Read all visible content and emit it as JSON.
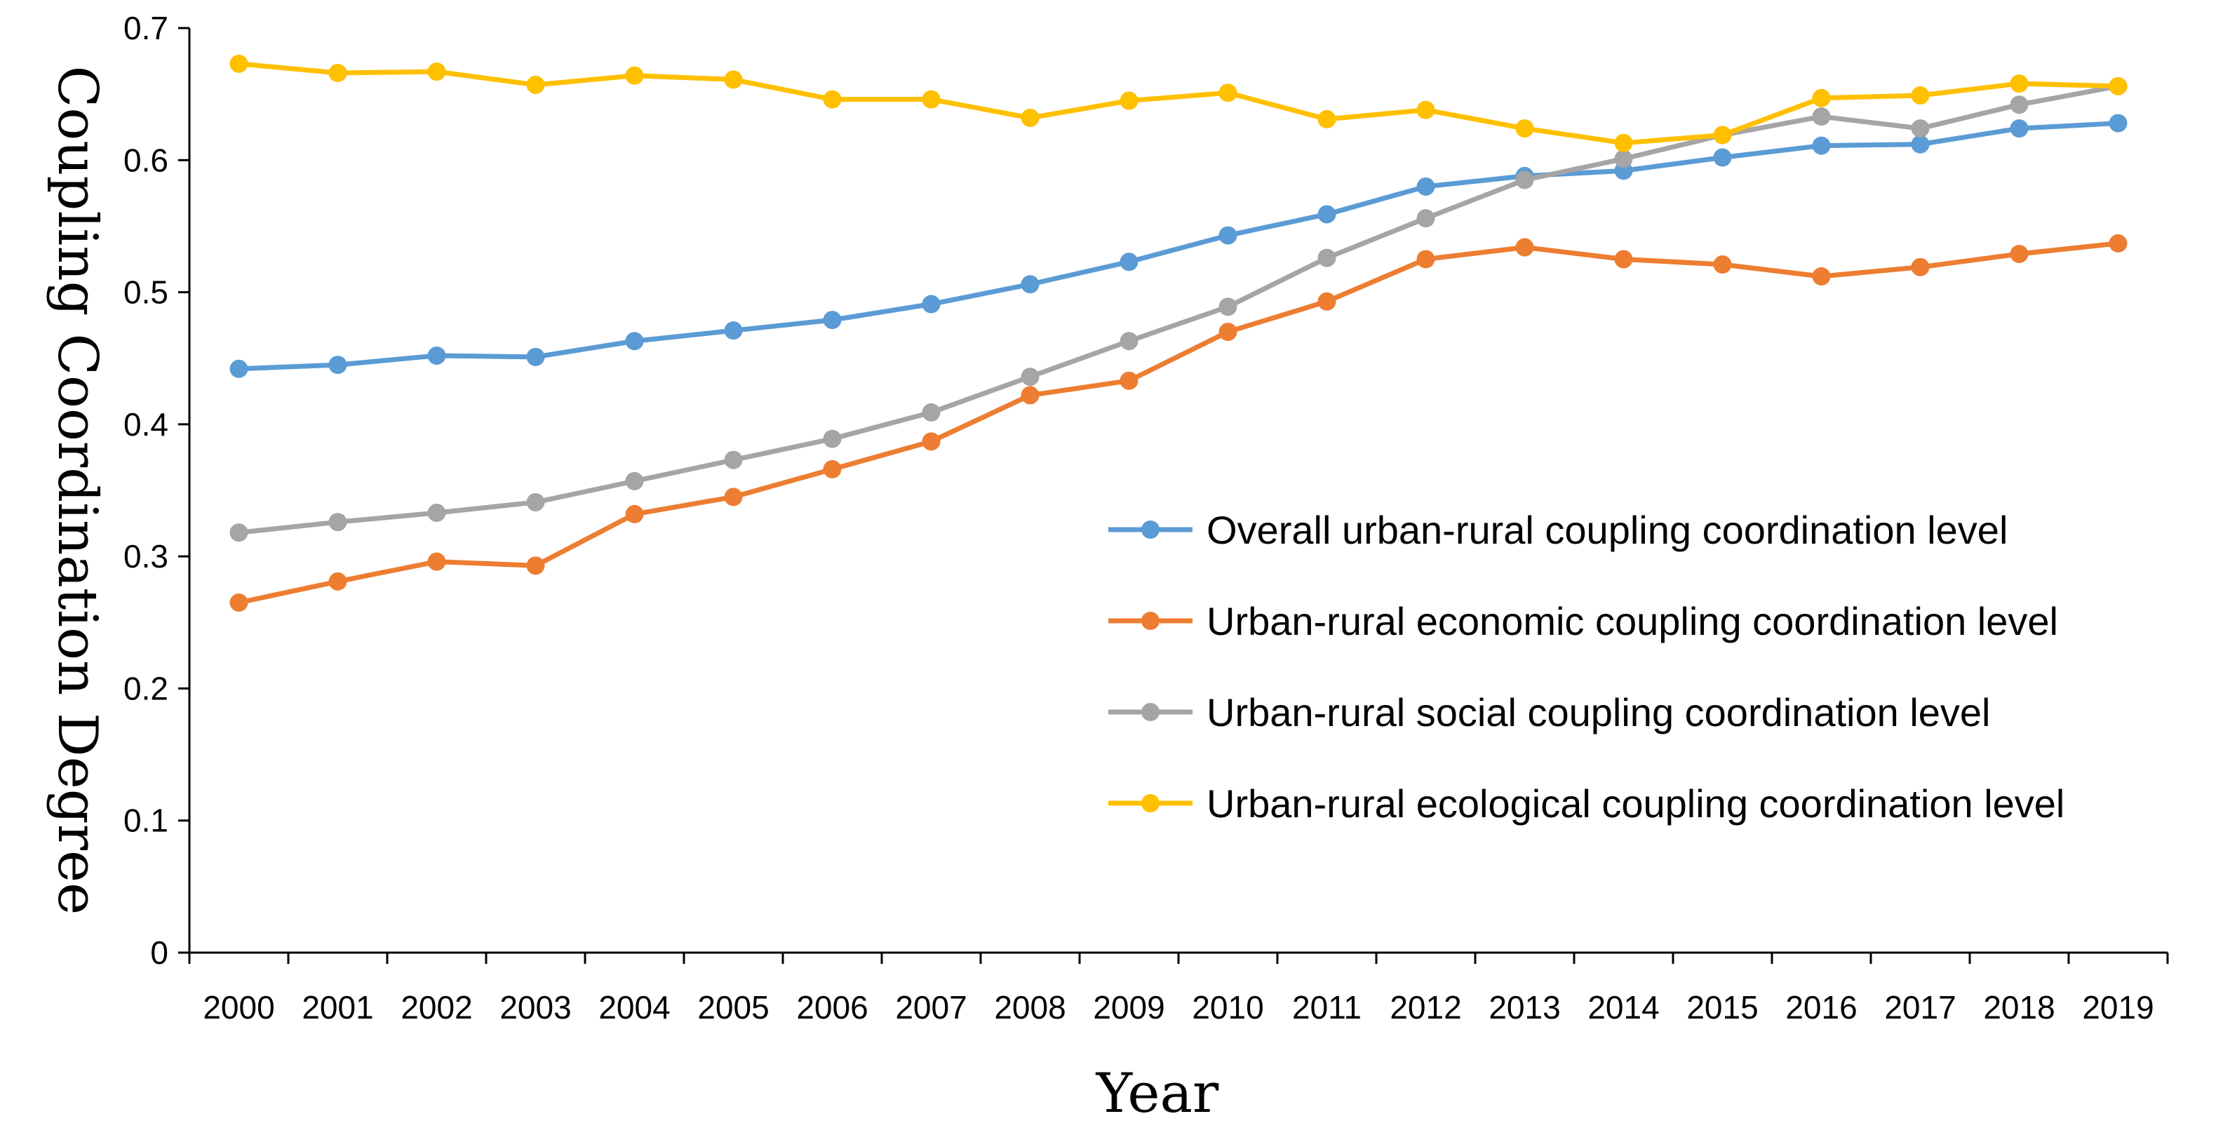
{
  "chart_data": {
    "type": "line",
    "title": "",
    "xlabel": "Year",
    "ylabel": "Coupling Coordination Degree",
    "ylim": [
      0,
      0.7
    ],
    "yticks": [
      "0",
      "0.1",
      "0.2",
      "0.3",
      "0.4",
      "0.5",
      "0.6",
      "0.7"
    ],
    "grid": false,
    "legend_position": "right",
    "categories": [
      "2000",
      "2001",
      "2002",
      "2003",
      "2004",
      "2005",
      "2006",
      "2007",
      "2008",
      "2009",
      "2010",
      "2011",
      "2012",
      "2013",
      "2014",
      "2015",
      "2016",
      "2017",
      "2018",
      "2019"
    ],
    "series": [
      {
        "name": "Overall urban-rural coupling coordination level",
        "color": "#5B9BD5",
        "values": [
          0.442,
          0.445,
          0.452,
          0.451,
          0.463,
          0.471,
          0.479,
          0.491,
          0.506,
          0.523,
          0.543,
          0.559,
          0.58,
          0.588,
          0.592,
          0.602,
          0.611,
          0.612,
          0.624,
          0.628
        ]
      },
      {
        "name": "Urban-rural economic coupling coordination level",
        "color": "#ED7D31",
        "values": [
          0.265,
          0.281,
          0.296,
          0.293,
          0.332,
          0.345,
          0.366,
          0.387,
          0.422,
          0.433,
          0.47,
          0.493,
          0.525,
          0.534,
          0.525,
          0.521,
          0.512,
          0.519,
          0.529,
          0.537
        ]
      },
      {
        "name": "Urban-rural social coupling coordination level",
        "color": "#A5A5A5",
        "values": [
          0.318,
          0.326,
          0.333,
          0.341,
          0.357,
          0.373,
          0.389,
          0.409,
          0.436,
          0.463,
          0.489,
          0.526,
          0.556,
          0.585,
          0.601,
          0.619,
          0.633,
          0.624,
          0.642,
          0.656
        ]
      },
      {
        "name": "Urban-rural ecological coupling coordination level",
        "color": "#FFC000",
        "values": [
          0.673,
          0.666,
          0.667,
          0.657,
          0.664,
          0.661,
          0.646,
          0.646,
          0.632,
          0.645,
          0.651,
          0.631,
          0.638,
          0.624,
          0.613,
          0.619,
          0.647,
          0.649,
          0.658,
          0.656
        ]
      }
    ]
  }
}
